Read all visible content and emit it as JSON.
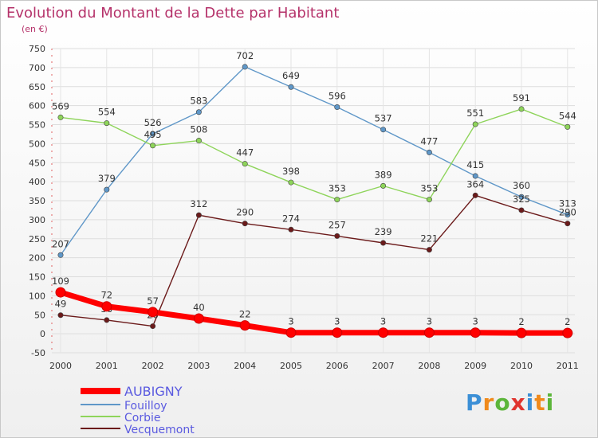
{
  "header": {
    "title": "Evolution du Montant de la Dette par Habitant",
    "subtitle": "(en €)"
  },
  "logo": {
    "letters": [
      "P",
      "r",
      "o",
      "x",
      "i",
      "t",
      "i"
    ],
    "colors": [
      "#3b8fd6",
      "#f08a1c",
      "#5cb53a",
      "#e0342e",
      "#3b8fd6",
      "#f08a1c",
      "#5cb53a"
    ]
  },
  "chart_data": {
    "type": "line",
    "categories": [
      "2000",
      "2001",
      "2002",
      "2003",
      "2004",
      "2005",
      "2006",
      "2007",
      "2008",
      "2009",
      "2010",
      "2011"
    ],
    "ylim": [
      -50,
      750
    ],
    "yticks": [
      -50,
      0,
      50,
      100,
      150,
      200,
      250,
      300,
      350,
      400,
      450,
      500,
      550,
      600,
      650,
      700,
      750
    ],
    "grid": true,
    "legend_position": "bottom-left",
    "series": [
      {
        "name": "AUBIGNY",
        "color": "#ff0000",
        "values": [
          109,
          72,
          57,
          40,
          22,
          3,
          3,
          3,
          3,
          3,
          2,
          2
        ]
      },
      {
        "name": "Fouilloy",
        "color": "#5f97c8",
        "values": [
          207,
          379,
          526,
          583,
          702,
          649,
          596,
          537,
          477,
          415,
          360,
          313
        ]
      },
      {
        "name": "Corbie",
        "color": "#8ed45a",
        "values": [
          569,
          554,
          495,
          508,
          447,
          398,
          353,
          389,
          353,
          551,
          591,
          544
        ]
      },
      {
        "name": "Vecquemont",
        "color": "#6b1a1a",
        "values": [
          49,
          36,
          20,
          312,
          290,
          274,
          257,
          239,
          221,
          364,
          325,
          290
        ]
      }
    ]
  }
}
